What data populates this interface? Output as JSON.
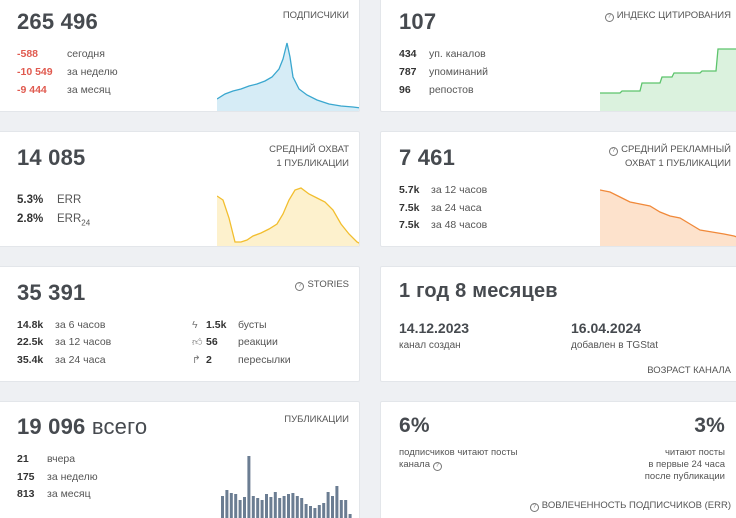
{
  "subscribers": {
    "value": "265 496",
    "label": "ПОДПИСЧИКИ",
    "rows": [
      {
        "value": "-588",
        "text": "сегодня"
      },
      {
        "value": "-10 549",
        "text": "за неделю"
      },
      {
        "value": "-9 444",
        "text": "за месяц"
      }
    ],
    "color": "#3aa7cf"
  },
  "citation": {
    "value": "107",
    "label": "ИНДЕКС ЦИТИРОВАНИЯ",
    "icon": "info-icon",
    "rows": [
      {
        "value": "434",
        "text": "уп. каналов"
      },
      {
        "value": "787",
        "text": "упоминаний"
      },
      {
        "value": "96",
        "text": "репостов"
      }
    ],
    "color": "#5cc46c"
  },
  "reach": {
    "value": "14 085",
    "label_line1": "СРЕДНИЙ ОХВАТ",
    "label_line2": "1 ПУБЛИКАЦИИ",
    "err_value": "5.3%",
    "err_label": "ERR",
    "err24_value": "2.8%",
    "err24_label": "ERR",
    "err24_sub": "24",
    "color": "#f2be2e"
  },
  "ad_reach": {
    "value": "7 461",
    "label_line1": "СРЕДНИЙ РЕКЛАМНЫЙ",
    "label_line2": "ОХВАТ 1 ПУБЛИКАЦИИ",
    "icon": "info-icon",
    "rows": [
      {
        "value": "5.7k",
        "text": "за 12 часов"
      },
      {
        "value": "7.5k",
        "text": "за 24 часа"
      },
      {
        "value": "7.5k",
        "text": "за 48 часов"
      }
    ],
    "color": "#f0893a"
  },
  "stories": {
    "value": "35 391",
    "label": "STORIES",
    "icon": "info-icon",
    "rows": [
      {
        "value": "14.8k",
        "text": "за 6 часов"
      },
      {
        "value": "22.5k",
        "text": "за 12 часов"
      },
      {
        "value": "35.4k",
        "text": "за 24 часа"
      }
    ],
    "stats": [
      {
        "icon": "lightning-icon",
        "value": "1.5k",
        "text": "бусты"
      },
      {
        "icon": "thumbs-up-icon",
        "value": "56",
        "text": "реакции"
      },
      {
        "icon": "share-arrow-icon",
        "value": "2",
        "text": "пересылки"
      }
    ]
  },
  "age": {
    "value": "1 год 8 месяцев",
    "created_date": "14.12.2023",
    "created_label": "канал создан",
    "added_date": "16.04.2024",
    "added_label": "добавлен в TGStat",
    "label": "ВОЗРАСТ КАНАЛА"
  },
  "publications": {
    "value": "19 096",
    "suffix": "всего",
    "label": "ПУБЛИКАЦИИ",
    "rows": [
      {
        "value": "21",
        "text": "вчера"
      },
      {
        "value": "175",
        "text": "за неделю"
      },
      {
        "value": "813",
        "text": "за месяц"
      }
    ],
    "color": "#6b7d92"
  },
  "engagement": {
    "left_value": "6%",
    "left_line1": "подписчиков читают посты",
    "left_line2": "канала",
    "right_value": "3%",
    "right_line1": "читают посты",
    "right_line2": "в первые 24 часа",
    "right_line3": "после публикации",
    "label": "ВОВЛЕЧЕННОСТЬ ПОДПИСЧИКОВ (ERR)",
    "icon": "info-icon"
  }
}
